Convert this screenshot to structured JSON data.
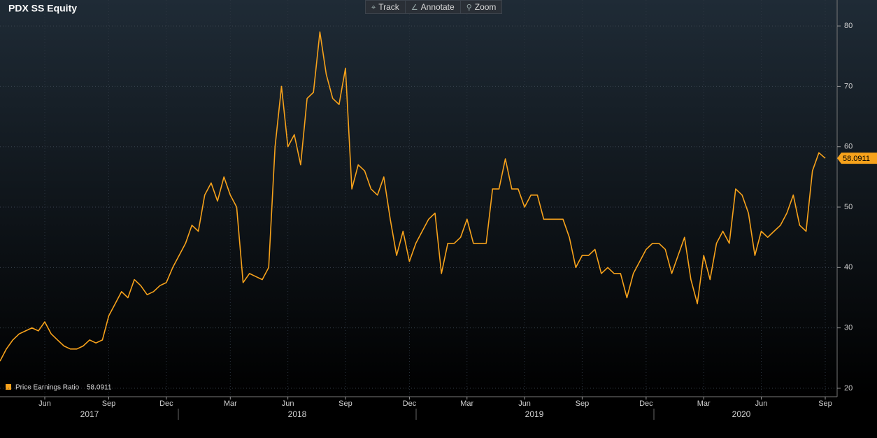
{
  "chart_data": {
    "type": "line",
    "title": "PDX SS Equity",
    "toolbar": [
      "Track",
      "Annotate",
      "Zoom"
    ],
    "categories": [
      null,
      null,
      null,
      null,
      null,
      null,
      null,
      "Jun",
      null,
      null,
      null,
      null,
      null,
      null,
      null,
      null,
      null,
      "Sep",
      null,
      null,
      null,
      null,
      null,
      null,
      null,
      null,
      "Dec",
      null,
      null,
      null,
      null,
      null,
      null,
      null,
      null,
      null,
      "Mar",
      null,
      null,
      null,
      null,
      null,
      null,
      null,
      null,
      "Jun",
      null,
      null,
      null,
      null,
      null,
      null,
      null,
      null,
      "Sep",
      null,
      null,
      null,
      null,
      null,
      null,
      null,
      null,
      null,
      "Dec",
      null,
      null,
      null,
      null,
      null,
      null,
      null,
      null,
      "Mar",
      null,
      null,
      null,
      null,
      null,
      null,
      null,
      null,
      "Jun",
      null,
      null,
      null,
      null,
      null,
      null,
      null,
      null,
      "Sep",
      null,
      null,
      null,
      null,
      null,
      null,
      null,
      null,
      null,
      "Dec",
      null,
      null,
      null,
      null,
      null,
      null,
      null,
      null,
      "Mar",
      null,
      null,
      null,
      null,
      null,
      null,
      null,
      null,
      "Jun",
      null,
      null,
      null,
      null,
      null,
      null,
      null,
      null,
      null,
      "Sep"
    ],
    "x_group_labels": [
      "2017",
      "2018",
      "2019",
      "2020"
    ],
    "series": [
      {
        "name": "Price Earnings Ratio",
        "color": "#f7a21b",
        "values": [
          24.5,
          26.5,
          28,
          29,
          29.5,
          30,
          29.5,
          31,
          29,
          28,
          27,
          26.5,
          26.5,
          27,
          28,
          27.5,
          28,
          32,
          34,
          36,
          35,
          38,
          37,
          35.5,
          36,
          37,
          37.5,
          40,
          42,
          44,
          47,
          46,
          52,
          54,
          51,
          55,
          52,
          50,
          37.5,
          39,
          38.5,
          38,
          40,
          60,
          70,
          60,
          62,
          57,
          68,
          69,
          79,
          72,
          68,
          67,
          73,
          53,
          57,
          56,
          53,
          52,
          55,
          48,
          42,
          46,
          41,
          44,
          46,
          48,
          49,
          39,
          44,
          44,
          45,
          48,
          44,
          44,
          44,
          53,
          53,
          58,
          53,
          53,
          50,
          52,
          52,
          48,
          48,
          48,
          48,
          45,
          40,
          42,
          42,
          43,
          39,
          40,
          39,
          39,
          35,
          39,
          41,
          43,
          44,
          44,
          43,
          39,
          42,
          45,
          38,
          34,
          42,
          38,
          44,
          46,
          44,
          53,
          52,
          49,
          42,
          46,
          45,
          46,
          47,
          49,
          52,
          47,
          46,
          56,
          59,
          58.0911
        ]
      }
    ],
    "ylim": [
      18.6,
      84.3
    ],
    "yticks": [
      20,
      30,
      40,
      50,
      60,
      70,
      80
    ],
    "grid": true
  }
}
